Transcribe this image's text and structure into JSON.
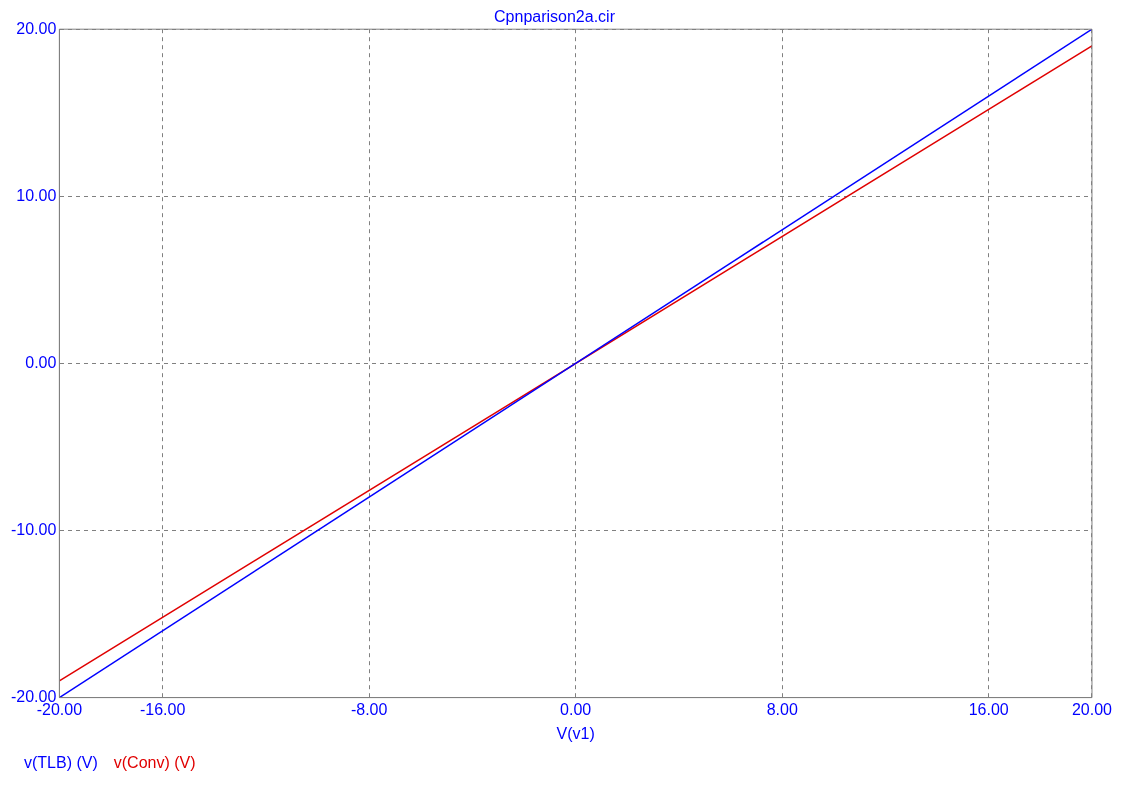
{
  "chart_data": {
    "type": "line",
    "title": "Cpnparison2a.cir",
    "xlabel": "V(v1)",
    "x": [
      -20,
      20
    ],
    "series": [
      {
        "name": "v(TLB) (V)",
        "color": "#0000ff",
        "values": [
          -20,
          20
        ]
      },
      {
        "name": "v(Conv) (V)",
        "color": "#e00000",
        "values": [
          -19,
          19
        ]
      }
    ],
    "xlim": [
      -20,
      20
    ],
    "xticks": [
      {
        "value": -20,
        "label": "-20.00"
      },
      {
        "value": -16,
        "label": "-16.00"
      },
      {
        "value": -8,
        "label": "-8.00"
      },
      {
        "value": 0,
        "label": "0.00"
      },
      {
        "value": 8,
        "label": "8.00"
      },
      {
        "value": 16,
        "label": "16.00"
      },
      {
        "value": 20,
        "label": "20.00"
      }
    ],
    "ylim": [
      -20,
      20
    ],
    "yticks": [
      {
        "value": -20,
        "label": "-20.00"
      },
      {
        "value": -10,
        "label": "-10.00"
      },
      {
        "value": 0,
        "label": "0.00"
      },
      {
        "value": 10,
        "label": "10.00"
      },
      {
        "value": 20,
        "label": "20.00"
      }
    ],
    "grid": true,
    "legend": "bottom left",
    "marker": "none",
    "line_style": "solid"
  }
}
